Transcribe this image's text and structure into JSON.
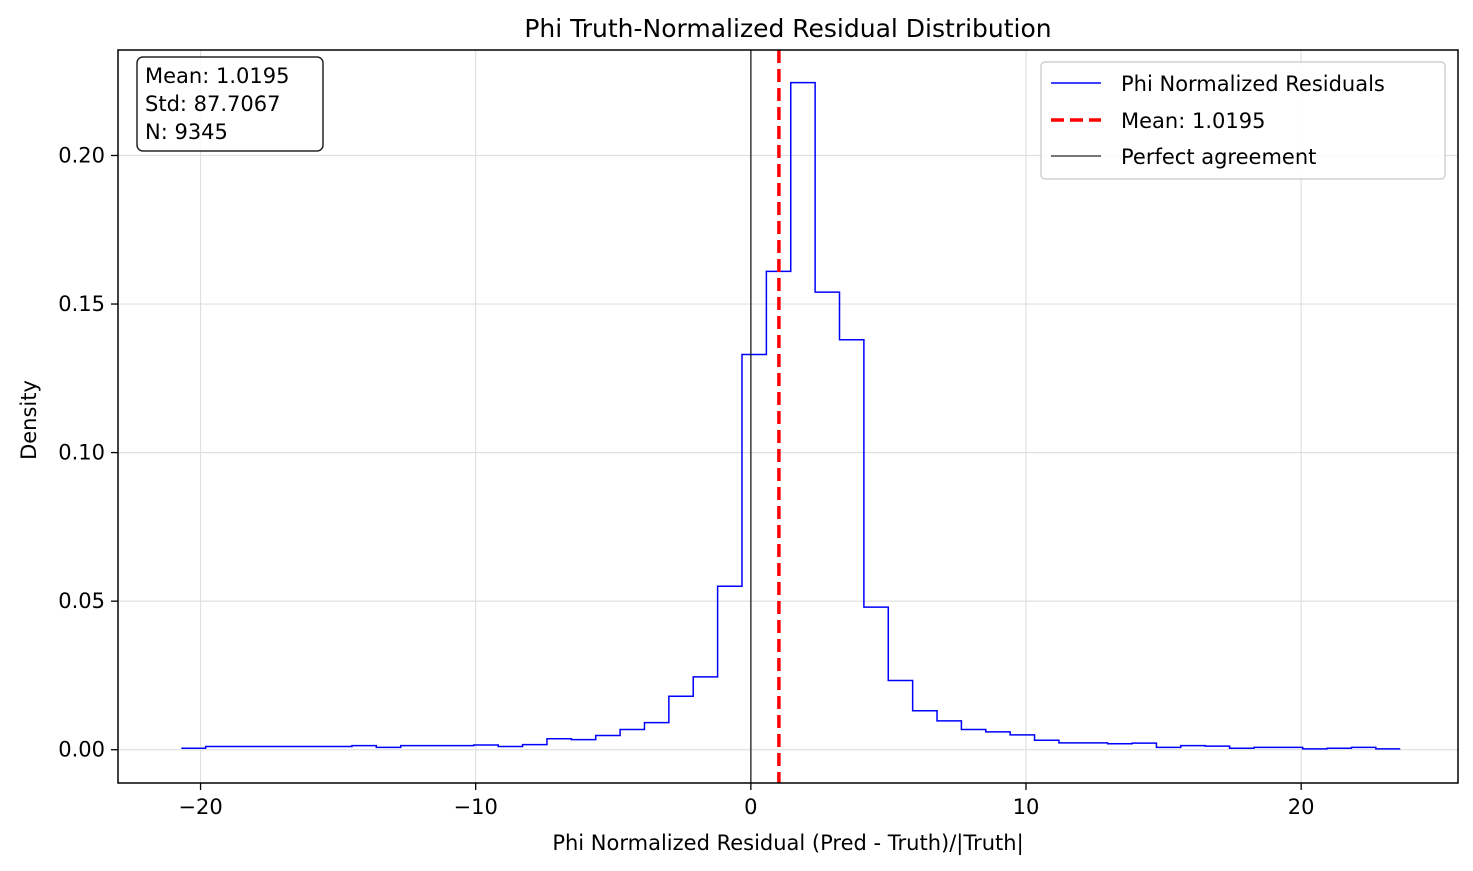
{
  "chart_data": {
    "type": "histogram-step",
    "title": "Phi Truth-Normalized Residual Distribution",
    "xlabel": "Phi Normalized Residual (Pred - Truth)/|Truth|",
    "ylabel": "Density",
    "xlim": [
      -23.0,
      25.7
    ],
    "ylim": [
      -0.0112,
      0.2355
    ],
    "x_ticks": [
      -20,
      -10,
      0,
      10,
      20
    ],
    "x_tick_labels": [
      "−20",
      "−10",
      "0",
      "10",
      "20"
    ],
    "y_ticks": [
      0.0,
      0.05,
      0.1,
      0.15,
      0.2
    ],
    "y_tick_labels": [
      "0.00",
      "0.05",
      "0.10",
      "0.15",
      "0.20"
    ],
    "grid": true,
    "bin_range": [
      -20.7,
      23.6
    ],
    "series": [
      {
        "name": "Phi Normalized Residuals",
        "color": "#0000ff",
        "values": [
          0.0005,
          0.0011,
          0.0011,
          0.0011,
          0.0011,
          0.0011,
          0.0011,
          0.0014,
          0.0008,
          0.0014,
          0.0014,
          0.0014,
          0.0016,
          0.0011,
          0.0017,
          0.0037,
          0.0034,
          0.0048,
          0.0068,
          0.0091,
          0.018,
          0.0245,
          0.055,
          0.133,
          0.161,
          0.2245,
          0.154,
          0.138,
          0.048,
          0.0233,
          0.0131,
          0.0097,
          0.0068,
          0.006,
          0.005,
          0.0032,
          0.0023,
          0.0023,
          0.002,
          0.0022,
          0.0008,
          0.0014,
          0.0012,
          0.0005,
          0.0008,
          0.0008,
          0.0003,
          0.0005,
          0.0008,
          0.0003
        ]
      }
    ],
    "mean_line": {
      "label": "Mean: 1.0195",
      "x": 1.0195,
      "color": "#ff0000"
    },
    "reference_line": {
      "label": "Perfect agreement",
      "x": 0,
      "color": "#000000"
    },
    "stats_box": [
      "Mean: 1.0195",
      "Std: 87.7067",
      "N: 9345"
    ],
    "legend_position": "top-right"
  }
}
